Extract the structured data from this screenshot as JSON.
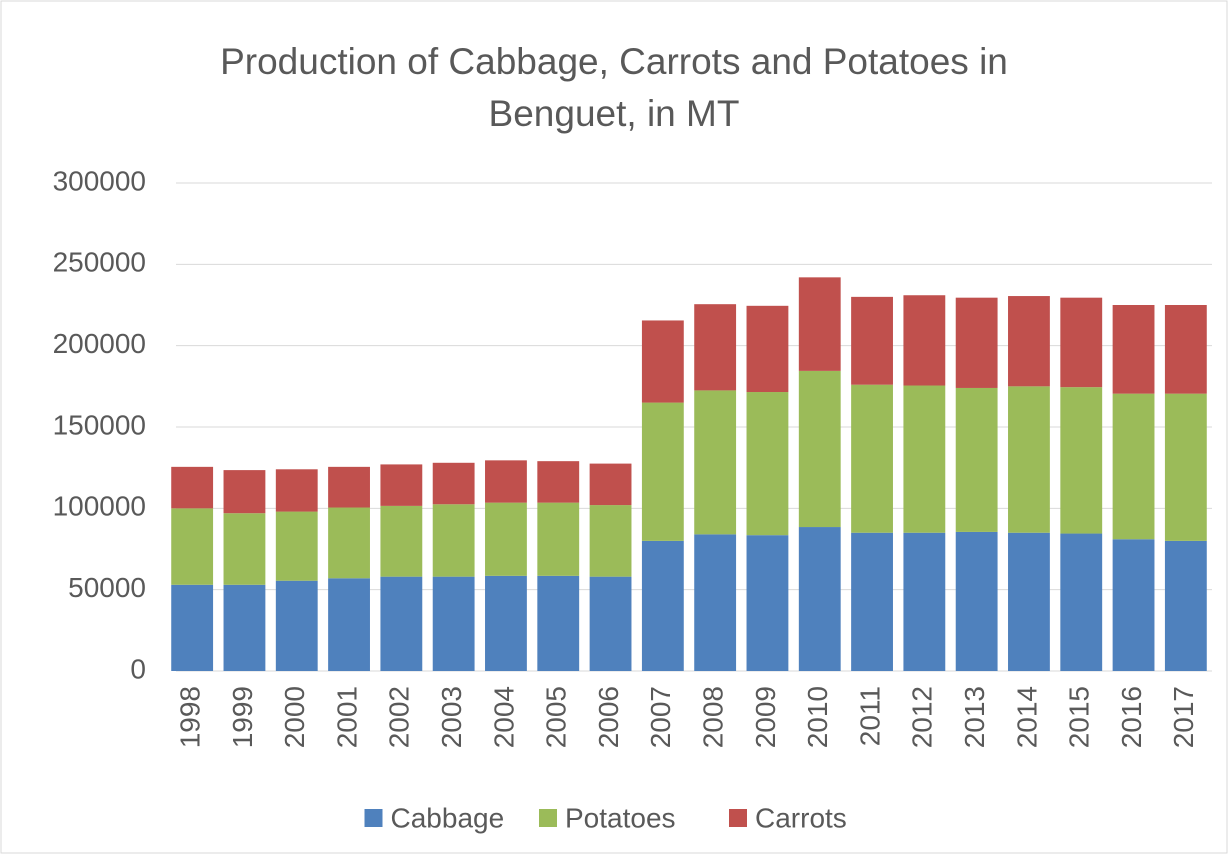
{
  "chart_data": {
    "type": "stacked-bar",
    "title": "Production of Cabbage, Carrots and Potatoes in Benguet, in MT",
    "categories": [
      "1998",
      "1999",
      "2000",
      "2001",
      "2002",
      "2003",
      "2004",
      "2005",
      "2006",
      "2007",
      "2008",
      "2009",
      "2010",
      "2011",
      "2012",
      "2013",
      "2014",
      "2015",
      "2016",
      "2017"
    ],
    "series": [
      {
        "name": "Cabbage",
        "color": "#4f81bd",
        "values": [
          53000,
          53000,
          55500,
          57000,
          58000,
          58000,
          58500,
          58500,
          58000,
          80000,
          84000,
          83500,
          88500,
          85000,
          85000,
          85500,
          85000,
          84500,
          81000,
          80000
        ]
      },
      {
        "name": "Potatoes",
        "color": "#9bbb59",
        "values": [
          47000,
          44000,
          42500,
          43500,
          43500,
          44500,
          45000,
          45000,
          44000,
          85000,
          88500,
          88000,
          96000,
          91000,
          90500,
          88500,
          90000,
          90000,
          89500,
          90500
        ]
      },
      {
        "name": "Carrots",
        "color": "#c0504d",
        "values": [
          25500,
          26500,
          26000,
          25000,
          25500,
          25500,
          26000,
          25500,
          25500,
          50500,
          53000,
          53000,
          57500,
          54000,
          55500,
          55500,
          55500,
          55000,
          54500,
          54500
        ]
      }
    ],
    "ylim": [
      0,
      300000
    ],
    "yticks": [
      0,
      50000,
      100000,
      150000,
      200000,
      250000,
      300000
    ],
    "grid": true,
    "legend": "bottom"
  }
}
